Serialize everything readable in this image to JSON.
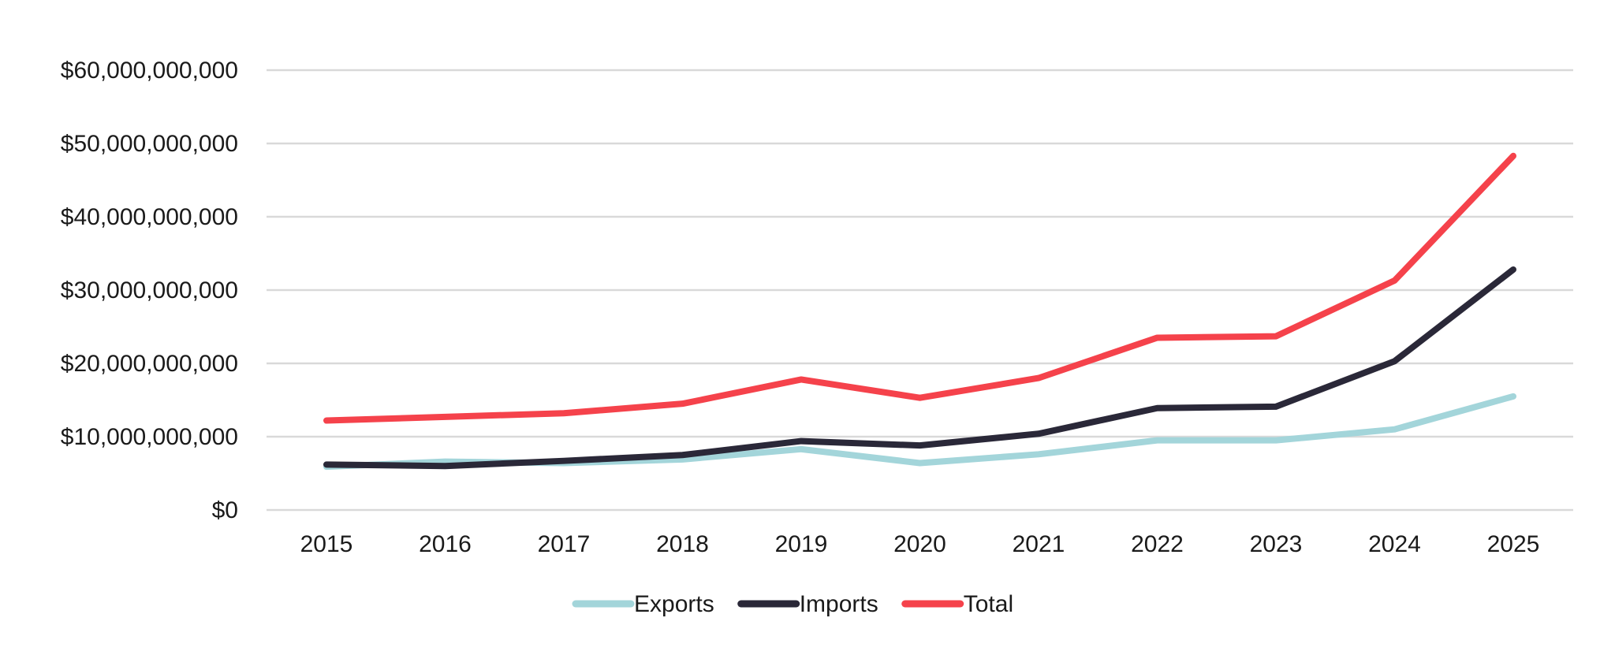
{
  "chart_data": {
    "type": "line",
    "title": "",
    "xlabel": "",
    "ylabel": "",
    "x": [
      "2015",
      "2016",
      "2017",
      "2018",
      "2019",
      "2020",
      "2021",
      "2022",
      "2023",
      "2024",
      "2025"
    ],
    "ylim": [
      0,
      60000000000
    ],
    "y_ticks": [
      0,
      10000000000,
      20000000000,
      30000000000,
      40000000000,
      50000000000,
      60000000000
    ],
    "y_tick_labels": [
      "$0",
      "$10,000,000,000",
      "$20,000,000,000",
      "$30,000,000,000",
      "$40,000,000,000",
      "$50,000,000,000",
      "$60,000,000,000"
    ],
    "grid": true,
    "legend_position": "bottom-center",
    "series": [
      {
        "name": "Exports",
        "color": "#a3d5da",
        "values": [
          5900000000,
          6600000000,
          6400000000,
          6900000000,
          8300000000,
          6400000000,
          7600000000,
          9500000000,
          9500000000,
          11000000000,
          15500000000
        ]
      },
      {
        "name": "Imports",
        "color": "#2a2838",
        "values": [
          6200000000,
          6000000000,
          6700000000,
          7500000000,
          9400000000,
          8800000000,
          10400000000,
          13900000000,
          14100000000,
          20300000000,
          32800000000
        ]
      },
      {
        "name": "Total",
        "color": "#f5424b",
        "values": [
          12200000000,
          12700000000,
          13200000000,
          14500000000,
          17800000000,
          15300000000,
          18000000000,
          23500000000,
          23700000000,
          31300000000,
          48300000000
        ]
      }
    ]
  }
}
